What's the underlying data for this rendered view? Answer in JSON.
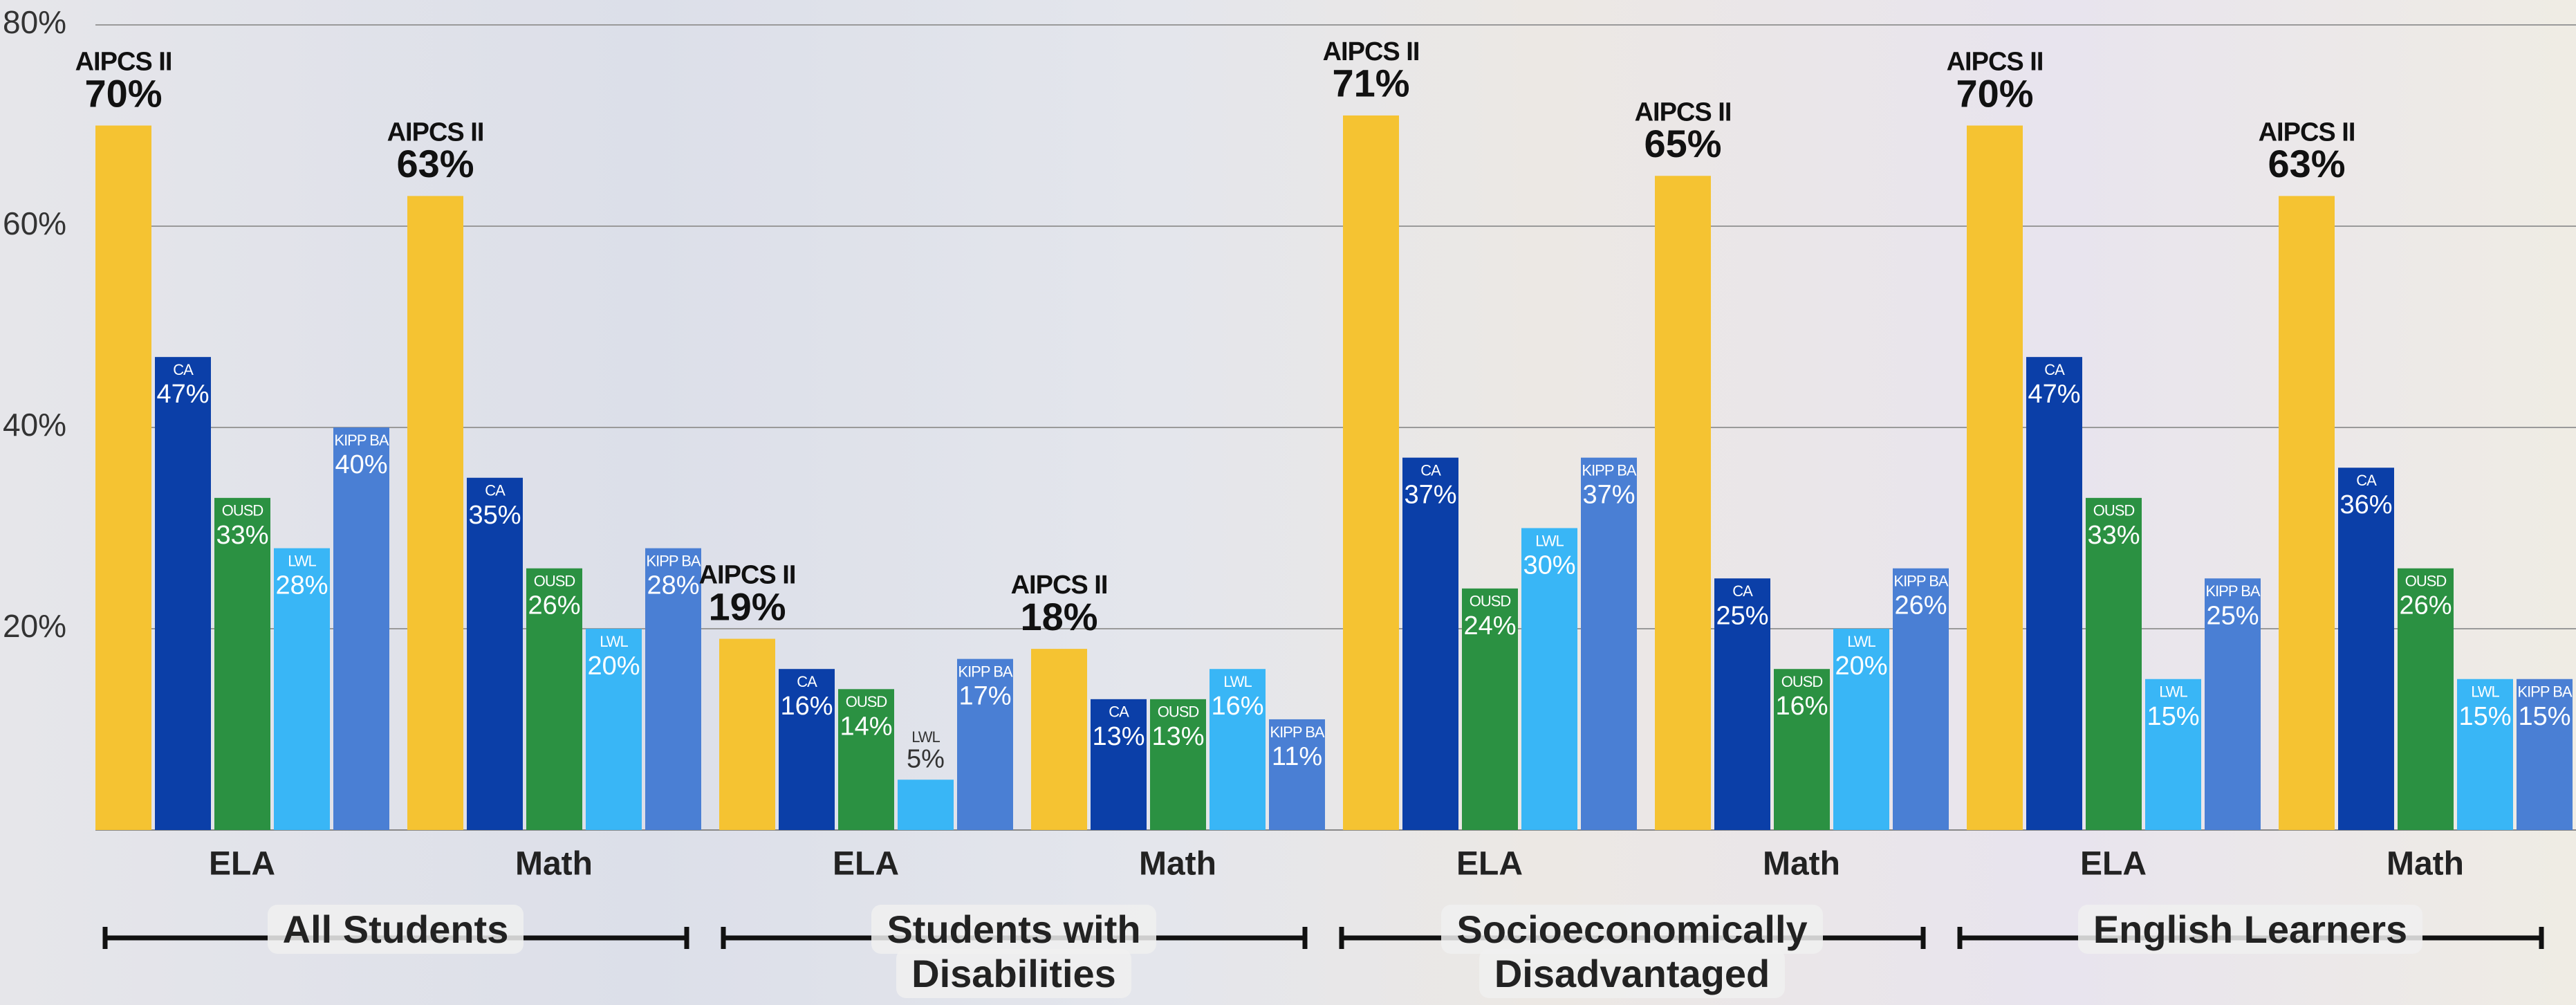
{
  "chart_data": {
    "type": "bar",
    "groups": [
      "All Students",
      "Students with Disabilities",
      "Socioeconomically Disadvantaged",
      "English Learners"
    ],
    "categories": [
      "ELA",
      "Math",
      "ELA",
      "Math",
      "ELA",
      "Math",
      "ELA",
      "Math"
    ],
    "series": [
      {
        "name": "AIPCS II",
        "color": "#f5c332",
        "values": [
          70,
          63,
          19,
          18,
          71,
          65,
          70,
          63
        ],
        "value_labels": [
          "70%",
          "63%",
          "19%",
          "18%",
          "71%",
          "65%",
          "70%",
          "63%"
        ]
      },
      {
        "name": "CA",
        "color": "#0b3fa8",
        "values": [
          47,
          35,
          16,
          13,
          37,
          25,
          47,
          36
        ],
        "value_labels": [
          "47%",
          "35%",
          "16%",
          "13%",
          "37%",
          "25%",
          "47%",
          "36%"
        ]
      },
      {
        "name": "OUSD",
        "color": "#2b9142",
        "values": [
          33,
          26,
          14,
          13,
          24,
          16,
          33,
          26
        ],
        "value_labels": [
          "33%",
          "26%",
          "14%",
          "13%",
          "24%",
          "16%",
          "33%",
          "26%"
        ]
      },
      {
        "name": "LWL",
        "color": "#39b6f6",
        "values": [
          28,
          20,
          5,
          16,
          30,
          20,
          15,
          15
        ],
        "value_labels": [
          "28%",
          "20%",
          "5%",
          "16%",
          "30%",
          "20%",
          "15%",
          "15%"
        ]
      },
      {
        "name": "KIPP BA",
        "color": "#4a7fd4",
        "values": [
          40,
          28,
          17,
          11,
          37,
          26,
          25,
          15
        ],
        "value_labels": [
          "40%",
          "28%",
          "17%",
          "11%",
          "37%",
          "26%",
          "25%",
          "15%"
        ]
      }
    ],
    "ylim": [
      0,
      80
    ],
    "yticks": [
      {
        "value": 20,
        "label": "20%"
      },
      {
        "value": 40,
        "label": "40%"
      },
      {
        "value": 60,
        "label": "60%"
      },
      {
        "value": 80,
        "label": "80%"
      }
    ],
    "grid": true
  }
}
